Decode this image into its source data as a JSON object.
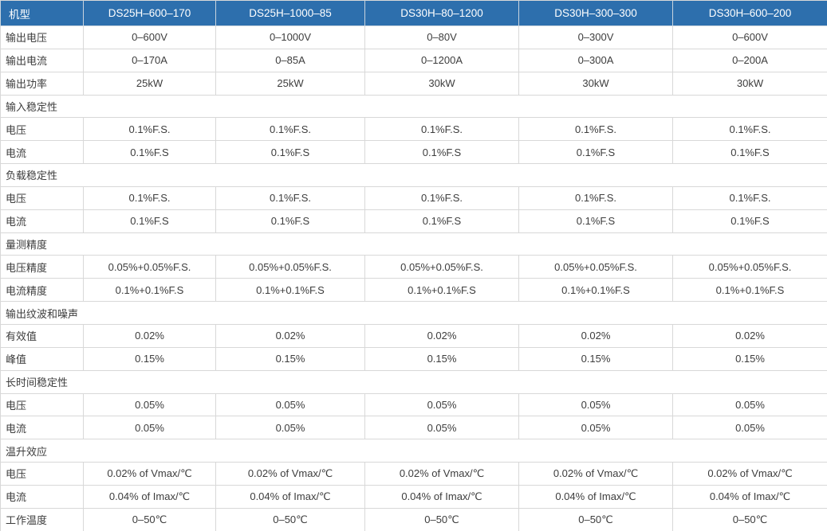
{
  "colors": {
    "header_bg": "#2d6fad",
    "header_text": "#ffffff",
    "border": "#d8d8d8",
    "body_text": "#3d3d3d"
  },
  "table": {
    "header": [
      "机型",
      "DS25H–600–170",
      "DS25H–1000–85",
      "DS30H–80–1200",
      "DS30H–300–300",
      "DS30H–600–200"
    ],
    "rows": [
      {
        "type": "data",
        "label": "输出电压",
        "values": [
          "0–600V",
          "0–1000V",
          "0–80V",
          "0–300V",
          "0–600V"
        ]
      },
      {
        "type": "data",
        "label": "输出电流",
        "values": [
          "0–170A",
          "0–85A",
          "0–1200A",
          "0–300A",
          "0–200A"
        ]
      },
      {
        "type": "data",
        "label": "输出功率",
        "values": [
          "25kW",
          "25kW",
          "30kW",
          "30kW",
          "30kW"
        ]
      },
      {
        "type": "section",
        "label": "输入稳定性"
      },
      {
        "type": "data",
        "label": "电压",
        "values": [
          "0.1%F.S.",
          "0.1%F.S.",
          "0.1%F.S.",
          "0.1%F.S.",
          "0.1%F.S."
        ]
      },
      {
        "type": "data",
        "label": "电流",
        "values": [
          "0.1%F.S",
          "0.1%F.S",
          "0.1%F.S",
          "0.1%F.S",
          "0.1%F.S"
        ]
      },
      {
        "type": "section",
        "label": "负载稳定性"
      },
      {
        "type": "data",
        "label": "电压",
        "values": [
          "0.1%F.S.",
          "0.1%F.S.",
          "0.1%F.S.",
          "0.1%F.S.",
          "0.1%F.S."
        ]
      },
      {
        "type": "data",
        "label": "电流",
        "values": [
          "0.1%F.S",
          "0.1%F.S",
          "0.1%F.S",
          "0.1%F.S",
          "0.1%F.S"
        ]
      },
      {
        "type": "section",
        "label": "量测精度"
      },
      {
        "type": "data",
        "label": "电压精度",
        "values": [
          "0.05%+0.05%F.S.",
          "0.05%+0.05%F.S.",
          "0.05%+0.05%F.S.",
          "0.05%+0.05%F.S.",
          "0.05%+0.05%F.S."
        ]
      },
      {
        "type": "data",
        "label": "电流精度",
        "values": [
          "0.1%+0.1%F.S",
          "0.1%+0.1%F.S",
          "0.1%+0.1%F.S",
          "0.1%+0.1%F.S",
          "0.1%+0.1%F.S"
        ]
      },
      {
        "type": "section",
        "label": "输出纹波和噪声"
      },
      {
        "type": "data",
        "label": "有效值",
        "values": [
          "0.02%",
          "0.02%",
          "0.02%",
          "0.02%",
          "0.02%"
        ]
      },
      {
        "type": "data",
        "label": "峰值",
        "values": [
          "0.15%",
          "0.15%",
          "0.15%",
          "0.15%",
          "0.15%"
        ]
      },
      {
        "type": "section",
        "label": "长时间稳定性"
      },
      {
        "type": "data",
        "label": "电压",
        "values": [
          "0.05%",
          "0.05%",
          "0.05%",
          "0.05%",
          "0.05%"
        ]
      },
      {
        "type": "data",
        "label": "电流",
        "values": [
          "0.05%",
          "0.05%",
          "0.05%",
          "0.05%",
          "0.05%"
        ]
      },
      {
        "type": "section",
        "label": "温升效应"
      },
      {
        "type": "data",
        "label": "电压",
        "values": [
          "0.02% of Vmax/℃",
          "0.02% of Vmax/℃",
          "0.02% of Vmax/℃",
          "0.02% of Vmax/℃",
          "0.02% of Vmax/℃"
        ]
      },
      {
        "type": "data",
        "label": "电流",
        "values": [
          "0.04% of Imax/℃",
          "0.04% of Imax/℃",
          "0.04% of Imax/℃",
          "0.04% of Imax/℃",
          "0.04% of Imax/℃"
        ]
      },
      {
        "type": "data",
        "label": "工作温度",
        "values": [
          "0–50℃",
          "0–50℃",
          "0–50℃",
          "0–50℃",
          "0–50℃"
        ]
      }
    ]
  }
}
